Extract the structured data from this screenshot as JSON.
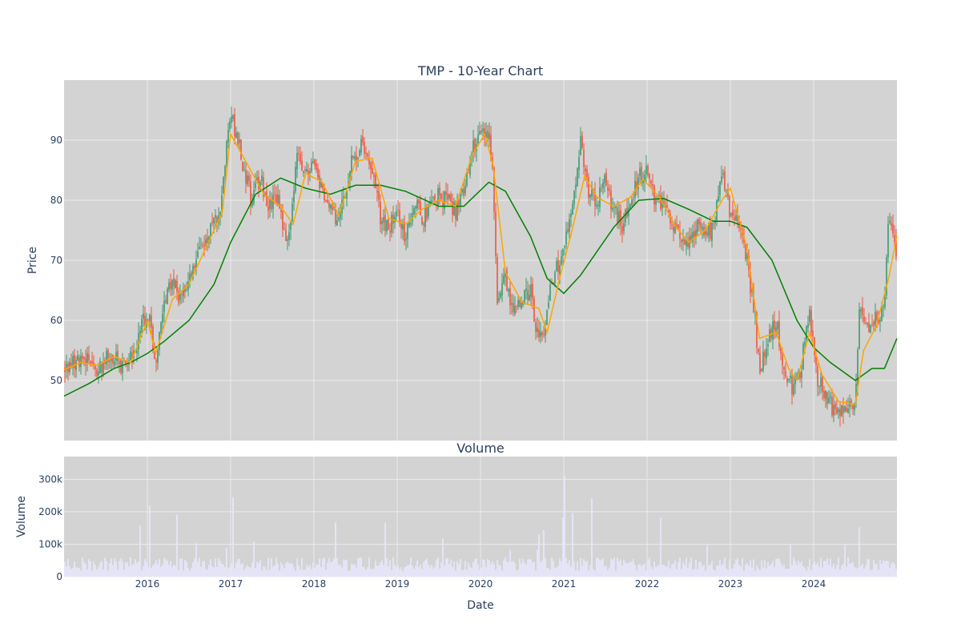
{
  "chart_data": {
    "type": "candlestick",
    "title": "TMP - 10-Year Chart",
    "subplot_title": "Volume",
    "price_axis_label": "Price",
    "volume_axis_label": "Volume",
    "x_axis_label": "Date",
    "x_range": [
      2015.0,
      2025.0
    ],
    "x_ticks": [
      {
        "value": 2016,
        "label": "2016"
      },
      {
        "value": 2017,
        "label": "2017"
      },
      {
        "value": 2018,
        "label": "2018"
      },
      {
        "value": 2019,
        "label": "2019"
      },
      {
        "value": 2020,
        "label": "2020"
      },
      {
        "value": 2021,
        "label": "2021"
      },
      {
        "value": 2022,
        "label": "2022"
      },
      {
        "value": 2023,
        "label": "2023"
      },
      {
        "value": 2024,
        "label": "2024"
      }
    ],
    "price_range": [
      40,
      100
    ],
    "price_ticks": [
      {
        "value": 50,
        "label": "50"
      },
      {
        "value": 60,
        "label": "60"
      },
      {
        "value": 70,
        "label": "70"
      },
      {
        "value": 80,
        "label": "80"
      },
      {
        "value": 90,
        "label": "90"
      }
    ],
    "volume_range": [
      0,
      370000
    ],
    "volume_ticks": [
      {
        "value": 0,
        "label": "0"
      },
      {
        "value": 100000,
        "label": "100k"
      },
      {
        "value": 200000,
        "label": "200k"
      },
      {
        "value": 300000,
        "label": "300k"
      }
    ],
    "close_path": [
      [
        2015.0,
        52
      ],
      [
        2015.1,
        52.5
      ],
      [
        2015.3,
        53.5
      ],
      [
        2015.4,
        51
      ],
      [
        2015.5,
        54
      ],
      [
        2015.6,
        53.5
      ],
      [
        2015.7,
        52
      ],
      [
        2015.8,
        54
      ],
      [
        2015.9,
        57
      ],
      [
        2016.0,
        62
      ],
      [
        2016.05,
        58
      ],
      [
        2016.1,
        54
      ],
      [
        2016.2,
        63
      ],
      [
        2016.3,
        66
      ],
      [
        2016.4,
        64
      ],
      [
        2016.5,
        67
      ],
      [
        2016.6,
        70
      ],
      [
        2016.7,
        73
      ],
      [
        2016.8,
        76
      ],
      [
        2016.9,
        80
      ],
      [
        2016.95,
        90
      ],
      [
        2017.0,
        94
      ],
      [
        2017.1,
        90
      ],
      [
        2017.15,
        86
      ],
      [
        2017.25,
        80
      ],
      [
        2017.35,
        84
      ],
      [
        2017.45,
        79
      ],
      [
        2017.55,
        81
      ],
      [
        2017.65,
        75
      ],
      [
        2017.7,
        74
      ],
      [
        2017.8,
        87
      ],
      [
        2017.9,
        84
      ],
      [
        2018.0,
        86
      ],
      [
        2018.1,
        82
      ],
      [
        2018.2,
        80
      ],
      [
        2018.3,
        76
      ],
      [
        2018.4,
        84
      ],
      [
        2018.5,
        88
      ],
      [
        2018.6,
        89
      ],
      [
        2018.7,
        86
      ],
      [
        2018.8,
        77
      ],
      [
        2018.9,
        75
      ],
      [
        2019.0,
        78
      ],
      [
        2019.1,
        74
      ],
      [
        2019.2,
        80
      ],
      [
        2019.3,
        77
      ],
      [
        2019.4,
        79
      ],
      [
        2019.5,
        81
      ],
      [
        2019.6,
        80
      ],
      [
        2019.7,
        78
      ],
      [
        2019.8,
        82
      ],
      [
        2019.9,
        89
      ],
      [
        2020.0,
        91
      ],
      [
        2020.1,
        92
      ],
      [
        2020.15,
        85
      ],
      [
        2020.2,
        64
      ],
      [
        2020.3,
        67
      ],
      [
        2020.4,
        61
      ],
      [
        2020.5,
        64
      ],
      [
        2020.6,
        65
      ],
      [
        2020.65,
        60
      ],
      [
        2020.75,
        56
      ],
      [
        2020.85,
        66
      ],
      [
        2020.95,
        70
      ],
      [
        2021.05,
        76
      ],
      [
        2021.15,
        82
      ],
      [
        2021.2,
        91
      ],
      [
        2021.3,
        81
      ],
      [
        2021.4,
        80
      ],
      [
        2021.5,
        83
      ],
      [
        2021.6,
        78
      ],
      [
        2021.7,
        76
      ],
      [
        2021.8,
        80
      ],
      [
        2021.9,
        84
      ],
      [
        2022.0,
        85
      ],
      [
        2022.1,
        80
      ],
      [
        2022.2,
        79
      ],
      [
        2022.3,
        76
      ],
      [
        2022.4,
        73
      ],
      [
        2022.5,
        72
      ],
      [
        2022.6,
        76
      ],
      [
        2022.7,
        74
      ],
      [
        2022.8,
        76
      ],
      [
        2022.9,
        84
      ],
      [
        2023.0,
        78
      ],
      [
        2023.1,
        76
      ],
      [
        2023.2,
        70
      ],
      [
        2023.3,
        60
      ],
      [
        2023.35,
        51
      ],
      [
        2023.45,
        57
      ],
      [
        2023.55,
        60
      ],
      [
        2023.65,
        51
      ],
      [
        2023.75,
        49
      ],
      [
        2023.85,
        52
      ],
      [
        2023.95,
        62
      ],
      [
        2024.05,
        50
      ],
      [
        2024.15,
        48
      ],
      [
        2024.25,
        44
      ],
      [
        2024.35,
        46
      ],
      [
        2024.5,
        45
      ],
      [
        2024.55,
        62
      ],
      [
        2024.65,
        58
      ],
      [
        2024.75,
        60
      ],
      [
        2024.85,
        63
      ],
      [
        2024.9,
        77
      ],
      [
        2024.95,
        76
      ],
      [
        2025.0,
        68
      ]
    ],
    "sma_short": [
      [
        2015.0,
        51.8
      ],
      [
        2015.2,
        53.0
      ],
      [
        2015.4,
        52.5
      ],
      [
        2015.6,
        54.0
      ],
      [
        2015.8,
        53.0
      ],
      [
        2016.0,
        60.0
      ],
      [
        2016.1,
        54.5
      ],
      [
        2016.3,
        63.5
      ],
      [
        2016.5,
        66.0
      ],
      [
        2016.7,
        72.0
      ],
      [
        2016.9,
        78.0
      ],
      [
        2017.0,
        91.0
      ],
      [
        2017.2,
        86.0
      ],
      [
        2017.4,
        81.0
      ],
      [
        2017.6,
        79.0
      ],
      [
        2017.75,
        76.0
      ],
      [
        2017.9,
        84.5
      ],
      [
        2018.1,
        83.0
      ],
      [
        2018.3,
        77.5
      ],
      [
        2018.5,
        86.5
      ],
      [
        2018.7,
        87.0
      ],
      [
        2018.9,
        77.0
      ],
      [
        2019.1,
        76.0
      ],
      [
        2019.3,
        78.5
      ],
      [
        2019.5,
        80.0
      ],
      [
        2019.7,
        79.0
      ],
      [
        2019.9,
        87.5
      ],
      [
        2020.05,
        91.0
      ],
      [
        2020.15,
        86.0
      ],
      [
        2020.3,
        68.0
      ],
      [
        2020.5,
        63.0
      ],
      [
        2020.7,
        62.0
      ],
      [
        2020.8,
        58.0
      ],
      [
        2020.95,
        67.0
      ],
      [
        2021.1,
        75.0
      ],
      [
        2021.25,
        84.0
      ],
      [
        2021.4,
        80.5
      ],
      [
        2021.6,
        79.0
      ],
      [
        2021.8,
        80.5
      ],
      [
        2021.95,
        83.5
      ],
      [
        2022.15,
        80.5
      ],
      [
        2022.35,
        75.5
      ],
      [
        2022.5,
        73.0
      ],
      [
        2022.7,
        75.0
      ],
      [
        2022.9,
        80.0
      ],
      [
        2023.0,
        82.0
      ],
      [
        2023.2,
        72.0
      ],
      [
        2023.35,
        57.0
      ],
      [
        2023.55,
        58.0
      ],
      [
        2023.7,
        52.0
      ],
      [
        2023.8,
        50.0
      ],
      [
        2023.95,
        58.0
      ],
      [
        2024.1,
        51.0
      ],
      [
        2024.3,
        46.5
      ],
      [
        2024.5,
        46.0
      ],
      [
        2024.6,
        55.0
      ],
      [
        2024.75,
        59.0
      ],
      [
        2024.9,
        67.0
      ],
      [
        2025.0,
        74.0
      ]
    ],
    "sma_long": [
      [
        2015.0,
        47.4
      ],
      [
        2015.3,
        49.5
      ],
      [
        2015.6,
        52.0
      ],
      [
        2015.8,
        53.0
      ],
      [
        2016.0,
        54.5
      ],
      [
        2016.2,
        56.5
      ],
      [
        2016.5,
        60.0
      ],
      [
        2016.8,
        66.0
      ],
      [
        2017.0,
        73.0
      ],
      [
        2017.3,
        81.0
      ],
      [
        2017.6,
        83.7
      ],
      [
        2017.9,
        82.0
      ],
      [
        2018.2,
        81.0
      ],
      [
        2018.5,
        82.5
      ],
      [
        2018.8,
        82.5
      ],
      [
        2019.1,
        81.5
      ],
      [
        2019.5,
        79.0
      ],
      [
        2019.8,
        79.0
      ],
      [
        2020.1,
        83.0
      ],
      [
        2020.3,
        81.5
      ],
      [
        2020.6,
        74.0
      ],
      [
        2020.8,
        67.0
      ],
      [
        2021.0,
        64.5
      ],
      [
        2021.2,
        67.5
      ],
      [
        2021.6,
        75.5
      ],
      [
        2021.9,
        80.0
      ],
      [
        2022.2,
        80.3
      ],
      [
        2022.5,
        78.5
      ],
      [
        2022.8,
        76.5
      ],
      [
        2023.0,
        76.5
      ],
      [
        2023.2,
        75.5
      ],
      [
        2023.5,
        70.0
      ],
      [
        2023.8,
        60.0
      ],
      [
        2024.0,
        55.5
      ],
      [
        2024.2,
        53.0
      ],
      [
        2024.5,
        50.0
      ],
      [
        2024.7,
        52.0
      ],
      [
        2024.85,
        52.0
      ],
      [
        2025.0,
        57.0
      ]
    ]
  },
  "colors": {
    "plot_bg": "#d3d3d3",
    "grid": "#ebebeb",
    "increasing": "#3d9970",
    "decreasing": "#ef553b",
    "sma_short": "#ffa500",
    "sma_long": "#008000",
    "volume": "#e6e6fa"
  }
}
